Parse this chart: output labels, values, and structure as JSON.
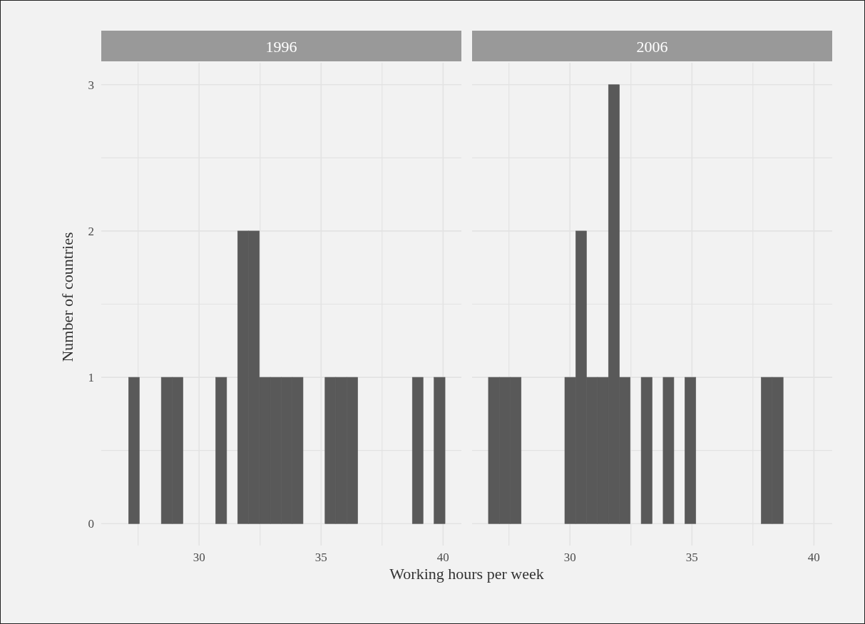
{
  "chart_data": [
    {
      "type": "histogram",
      "title": "1996",
      "xlabel": "Working hours per week",
      "ylabel": "Number of countries",
      "color": "#595959",
      "bins": [
        26.66,
        27.11,
        27.55,
        28.0,
        28.45,
        28.9,
        29.34,
        29.79,
        30.24,
        30.68,
        31.13,
        31.58,
        32.03,
        32.47,
        32.92,
        33.37,
        33.82,
        34.26,
        34.71,
        35.16,
        35.6,
        36.05,
        36.5,
        36.95,
        37.39,
        37.84,
        38.29,
        38.74,
        39.18,
        39.63,
        40.08
      ],
      "values": [
        0,
        1,
        0,
        0,
        1,
        1,
        0,
        0,
        0,
        1,
        0,
        2,
        2,
        1,
        1,
        1,
        1,
        0,
        0,
        1,
        1,
        1,
        0,
        0,
        0,
        0,
        0,
        1,
        0,
        1
      ],
      "xlim": [
        25.99,
        40.75
      ],
      "ylim": [
        -0.15,
        3.15
      ],
      "xticks": [
        {
          "value": 27.5,
          "label": null
        },
        30,
        {
          "value": 32.5,
          "label": null
        },
        35,
        {
          "value": 37.5,
          "label": null
        },
        40
      ],
      "yticks": [
        0,
        {
          "value": 0.5,
          "label": null
        },
        1,
        {
          "value": 1.5,
          "label": null
        },
        2,
        {
          "value": 2.5,
          "label": null
        },
        3
      ],
      "grid": true
    },
    {
      "type": "histogram",
      "title": "2006",
      "color": "#595959",
      "bins": [
        26.66,
        27.11,
        27.55,
        28.0,
        28.45,
        28.9,
        29.34,
        29.79,
        30.24,
        30.68,
        31.13,
        31.58,
        32.03,
        32.47,
        32.92,
        33.37,
        33.82,
        34.26,
        34.71,
        35.16,
        35.6,
        36.05,
        36.5,
        36.95,
        37.39,
        37.84,
        38.29,
        38.74,
        39.18,
        39.63,
        40.08
      ],
      "values": [
        1,
        1,
        1,
        0,
        0,
        0,
        0,
        1,
        2,
        1,
        1,
        3,
        1,
        0,
        1,
        0,
        1,
        0,
        1,
        0,
        0,
        0,
        0,
        0,
        0,
        1,
        1,
        0,
        0,
        0
      ],
      "xlim": [
        25.99,
        40.75
      ],
      "ylim": [
        -0.15,
        3.15
      ],
      "xticks": [
        {
          "value": 27.5,
          "label": null
        },
        30,
        {
          "value": 32.5,
          "label": null
        },
        35,
        {
          "value": 37.5,
          "label": null
        },
        40
      ],
      "yticks": [
        0,
        {
          "value": 0.5,
          "label": null
        },
        1,
        {
          "value": 1.5,
          "label": null
        },
        2,
        {
          "value": 2.5,
          "label": null
        },
        3
      ],
      "grid": true,
      "tick_labels": "x"
    }
  ]
}
